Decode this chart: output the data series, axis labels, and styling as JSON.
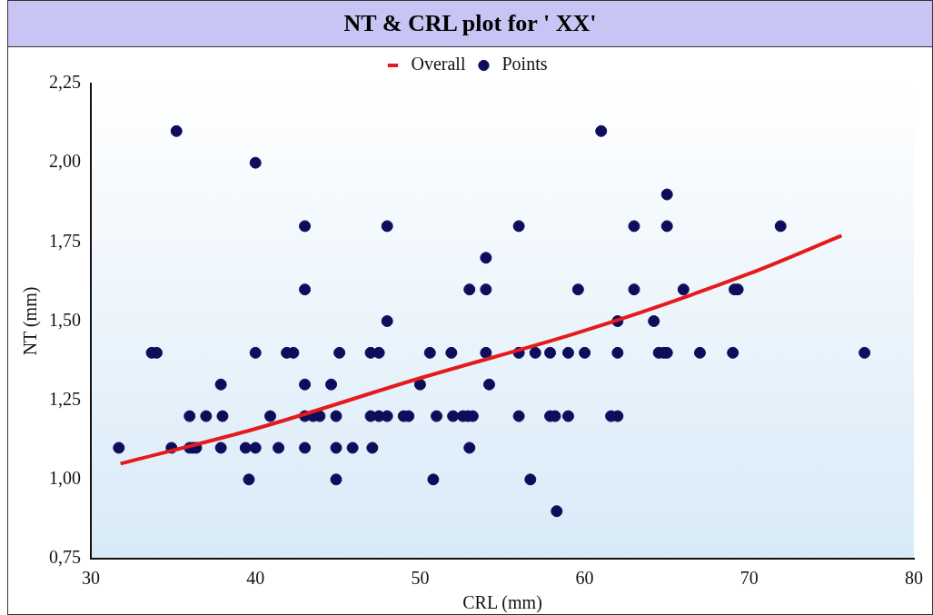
{
  "chart_data": {
    "type": "scatter",
    "title": "NT & CRL plot for ' XX'",
    "xlabel": "CRL (mm)",
    "ylabel": "NT (mm)",
    "xlim": [
      30,
      80
    ],
    "xticks": [
      30,
      40,
      50,
      60,
      70,
      80
    ],
    "ylim": [
      0.75,
      2.25
    ],
    "yticks": [
      {
        "value": 0.75,
        "label": "0,75"
      },
      {
        "value": 1,
        "label": "1,00"
      },
      {
        "value": 1.25,
        "label": "1,25"
      },
      {
        "value": 1.5,
        "label": "1,50"
      },
      {
        "value": 1.75,
        "label": "1,75"
      },
      {
        "value": 2,
        "label": "2,00"
      },
      {
        "value": 2.25,
        "label": "2,25"
      }
    ],
    "grid": false,
    "legend": "top",
    "series": [
      {
        "name": "Overall",
        "type": "line",
        "color": "#e41a1c",
        "line_style": "solid",
        "marker": "none",
        "x": [
          31.8,
          40,
          50,
          60,
          70,
          75.6
        ],
        "values": [
          1.05,
          1.16,
          1.32,
          1.47,
          1.65,
          1.77
        ]
      },
      {
        "name": "Points",
        "marker": "circle",
        "color": "#0d0d5c",
        "x": [
          31.7,
          33.7,
          34.0,
          35.2,
          34.9,
          36.0,
          36.2,
          36.4,
          36.0,
          37.0,
          37.9,
          38.0,
          37.9,
          39.4,
          39.6,
          40.0,
          40.0,
          40.0,
          40.9,
          41.4,
          41.9,
          42.3,
          43.0,
          43.0,
          43.0,
          43.0,
          43.0,
          43.5,
          43.9,
          44.6,
          44.9,
          44.9,
          44.9,
          45.1,
          45.9,
          47.0,
          47.0,
          47.1,
          47.5,
          47.5,
          48.0,
          48.0,
          48.0,
          49.0,
          49.3,
          50.0,
          50.6,
          50.8,
          51.0,
          51.9,
          52.0,
          52.6,
          52.9,
          53.2,
          53.0,
          53.0,
          54.0,
          54.0,
          54.0,
          54.2,
          56.0,
          56.0,
          56.0,
          57.0,
          56.7,
          57.9,
          58.2,
          57.9,
          58.3,
          59.0,
          59.0,
          59.6,
          60.0,
          61.0,
          61.6,
          62.0,
          62.0,
          62.0,
          63.0,
          63.0,
          64.2,
          64.5,
          64.8,
          65.0,
          65.0,
          65.0,
          66.0,
          67.0,
          69.0,
          69.1,
          69.3,
          71.9,
          77.0
        ],
        "values": [
          1.1,
          1.4,
          1.4,
          2.1,
          1.1,
          1.1,
          1.1,
          1.1,
          1.2,
          1.2,
          1.3,
          1.2,
          1.1,
          1.1,
          1.0,
          2.0,
          1.4,
          1.1,
          1.2,
          1.1,
          1.4,
          1.4,
          1.8,
          1.6,
          1.3,
          1.2,
          1.1,
          1.2,
          1.2,
          1.3,
          1.2,
          1.1,
          1.0,
          1.4,
          1.1,
          1.4,
          1.2,
          1.1,
          1.4,
          1.2,
          1.8,
          1.5,
          1.2,
          1.2,
          1.2,
          1.3,
          1.4,
          1.0,
          1.2,
          1.4,
          1.2,
          1.2,
          1.2,
          1.2,
          1.6,
          1.1,
          1.7,
          1.6,
          1.4,
          1.3,
          1.8,
          1.4,
          1.2,
          1.4,
          1.0,
          1.2,
          1.2,
          1.4,
          0.9,
          1.2,
          1.4,
          1.6,
          1.4,
          2.1,
          1.2,
          1.2,
          1.4,
          1.5,
          1.8,
          1.6,
          1.5,
          1.4,
          1.4,
          1.9,
          1.8,
          1.4,
          1.6,
          1.4,
          1.4,
          1.6,
          1.6,
          1.8,
          1.4
        ]
      }
    ]
  }
}
